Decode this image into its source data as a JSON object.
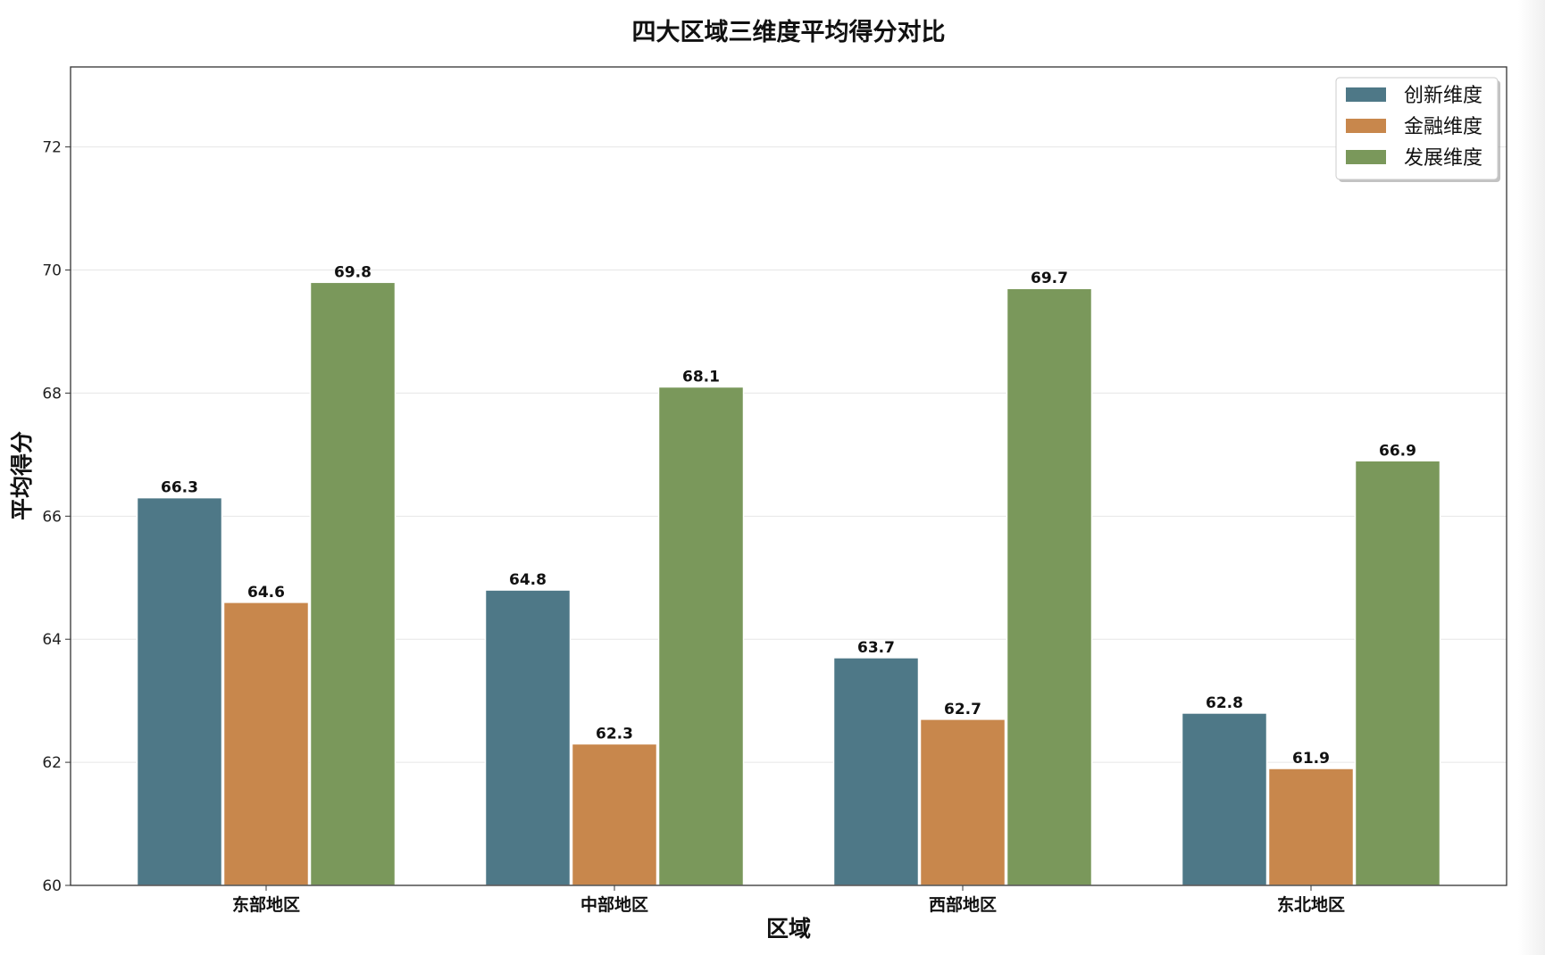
{
  "chart_data": {
    "type": "bar",
    "title": "四大区域三维度平均得分对比",
    "xlabel": "区域",
    "ylabel": "平均得分",
    "categories": [
      "东部地区",
      "中部地区",
      "西部地区",
      "东北地区"
    ],
    "series": [
      {
        "name": "创新维度",
        "color": "#4e7887",
        "values": [
          66.3,
          64.8,
          63.7,
          62.8
        ]
      },
      {
        "name": "金融维度",
        "color": "#c8874c",
        "values": [
          64.6,
          62.3,
          62.7,
          61.9
        ]
      },
      {
        "name": "发展维度",
        "color": "#7a985b",
        "values": [
          69.8,
          68.1,
          69.7,
          66.9
        ]
      }
    ],
    "ylim": [
      60,
      73.3
    ],
    "yticks": [
      60,
      62,
      64,
      66,
      68,
      70,
      72
    ],
    "grid": "y",
    "legend": "top-right",
    "data_labels": true
  }
}
